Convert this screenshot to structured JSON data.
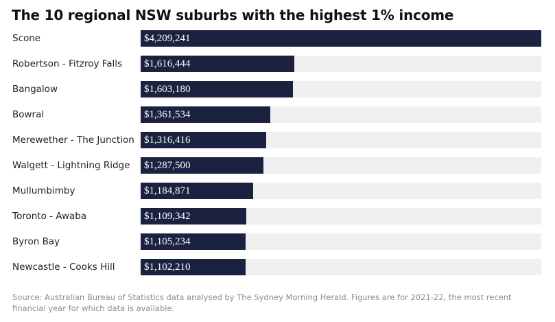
{
  "chart_data": {
    "type": "bar",
    "orientation": "horizontal",
    "title": "The 10 regional NSW suburbs with the highest 1% income",
    "categories": [
      "Scone",
      "Robertson - Fitzroy Falls",
      "Bangalow",
      "Bowral",
      "Merewether - The Junction",
      "Walgett - Lightning Ridge",
      "Mullumbimby",
      "Toronto - Awaba",
      "Byron Bay",
      "Newcastle - Cooks Hill"
    ],
    "values": [
      4209241,
      1616444,
      1603180,
      1361534,
      1316416,
      1287500,
      1184871,
      1109342,
      1105234,
      1102210
    ],
    "value_labels": [
      "$4,209,241",
      "$1,616,444",
      "$1,603,180",
      "$1,361,534",
      "$1,316,416",
      "$1,287,500",
      "$1,184,871",
      "$1,109,342",
      "$1,105,234",
      "$1,102,210"
    ],
    "xlim": [
      0,
      4209241
    ],
    "grid": false,
    "legend": "none",
    "colors": {
      "bar": "#1b2240",
      "track": "#f0f0f0",
      "value_text": "#ffffff"
    },
    "source": "Source: Australian Bureau of Statistics data analysed by The Sydney Morning Herald. Figures are for 2021-22, the most recent financial year for which data is available."
  }
}
